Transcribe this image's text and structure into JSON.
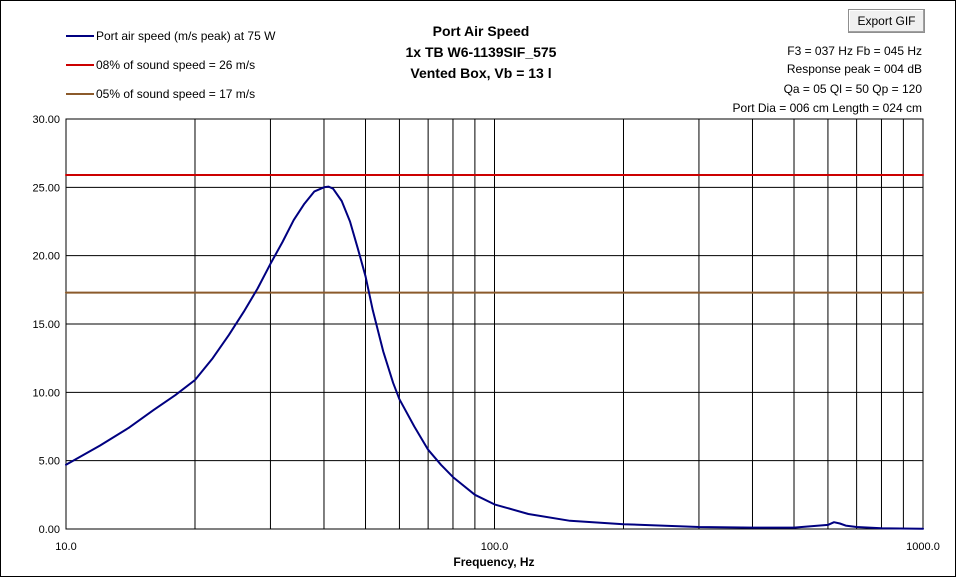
{
  "export_button": {
    "label": "Export GIF"
  },
  "title_lines": [
    "Port Air Speed",
    "1x TB W6-1139SIF_575",
    "Vented Box, Vb = 13 l"
  ],
  "info_lines": [
    "F3 = 037 Hz  Fb = 045 Hz",
    "Response peak = 004 dB",
    "Qa = 05  Ql = 50  Qp = 120",
    "Port Dia = 006 cm  Length = 024 cm"
  ],
  "chart_data": {
    "type": "line",
    "xlabel": "Frequency, Hz",
    "ylabel": "",
    "xscale": "log",
    "xlim": [
      10,
      1000
    ],
    "ylim": [
      0,
      30
    ],
    "x_tick_labels": [
      "10.0",
      "100.0",
      "1000.0"
    ],
    "x_tick_values": [
      10,
      100,
      1000
    ],
    "y_tick_labels": [
      "0.00",
      "5.00",
      "10.00",
      "15.00",
      "20.00",
      "25.00",
      "30.00"
    ],
    "y_tick_values": [
      0,
      5,
      10,
      15,
      20,
      25,
      30
    ],
    "grid": true,
    "legend": "top-left",
    "series": [
      {
        "name": "Port air speed (m/s peak) at 75 W",
        "color": "#000080",
        "x": [
          10,
          12,
          14,
          16,
          18,
          20,
          22,
          24,
          26,
          28,
          30,
          32,
          34,
          36,
          38,
          40,
          41,
          42,
          44,
          46,
          48,
          50,
          52,
          55,
          58,
          60,
          65,
          70,
          75,
          80,
          90,
          100,
          120,
          150,
          200,
          300,
          400,
          500,
          600,
          620,
          640,
          660,
          700,
          800,
          1000
        ],
        "values": [
          4.7,
          6.1,
          7.4,
          8.7,
          9.8,
          10.9,
          12.5,
          14.2,
          15.9,
          17.6,
          19.4,
          21.0,
          22.6,
          23.8,
          24.7,
          25.0,
          25.05,
          24.9,
          24.0,
          22.5,
          20.5,
          18.5,
          16.0,
          13.0,
          10.7,
          9.5,
          7.5,
          5.8,
          4.7,
          3.8,
          2.5,
          1.8,
          1.1,
          0.6,
          0.35,
          0.15,
          0.1,
          0.1,
          0.3,
          0.5,
          0.4,
          0.25,
          0.15,
          0.05,
          0.02
        ]
      },
      {
        "name": "08% of sound speed = 26 m/s",
        "color": "#cc0000",
        "x": [
          10,
          1000
        ],
        "values": [
          25.9,
          25.9
        ]
      },
      {
        "name": "05% of sound speed = 17 m/s",
        "color": "#8b5a2b",
        "x": [
          10,
          1000
        ],
        "values": [
          17.3,
          17.3
        ]
      }
    ]
  }
}
